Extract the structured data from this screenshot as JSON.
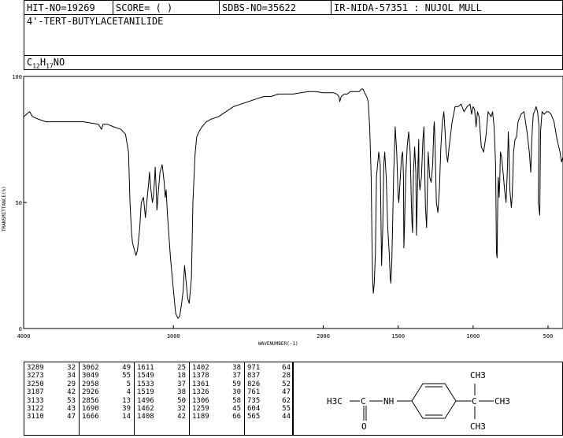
{
  "header": {
    "hit_no": "HIT-NO=19269",
    "score": "SCORE=  (   )",
    "sdbs_no": "SDBS-NO=35622",
    "ir_info": "IR-NIDA-57351 : NUJOL MULL"
  },
  "compound": {
    "name": "4'-TERT-BUTYLACETANILIDE",
    "formula_parts": [
      "C",
      "12",
      "H",
      "17",
      "NO"
    ]
  },
  "chart_data": {
    "type": "line",
    "xlabel": "WAVENUMBER(-1)",
    "ylabel": "TRANSMITTANCE(%)",
    "xlim": [
      4000,
      400
    ],
    "ylim": [
      0,
      100
    ],
    "x_ticks": [
      4000,
      3000,
      2000,
      1500,
      1000,
      500
    ],
    "x_tick_labels": [
      "4000",
      "3000",
      "2000",
      "1500",
      "1000",
      "500"
    ],
    "y_ticks": [
      0,
      50,
      100
    ],
    "y_tick_labels": [
      "0",
      "50",
      "100"
    ],
    "grid": false,
    "series": [
      {
        "x": [
          4000,
          3980,
          3960,
          3940,
          3900,
          3850,
          3800,
          3700,
          3600,
          3500,
          3480,
          3470,
          3440,
          3400,
          3350,
          3320,
          3300,
          3290,
          3280,
          3273,
          3260,
          3250,
          3240,
          3225,
          3215,
          3200,
          3187,
          3175,
          3165,
          3160,
          3150,
          3140,
          3133,
          3125,
          3122,
          3115,
          3110,
          3100,
          3090,
          3075,
          3062,
          3055,
          3049,
          3040,
          3020,
          3000,
          2985,
          2970,
          2958,
          2945,
          2935,
          2926,
          2915,
          2905,
          2895,
          2880,
          2870,
          2856,
          2845,
          2830,
          2810,
          2780,
          2750,
          2700,
          2650,
          2600,
          2550,
          2500,
          2450,
          2400,
          2350,
          2300,
          2250,
          2200,
          2150,
          2100,
          2050,
          2000,
          1970,
          1950,
          1930,
          1910,
          1895,
          1890,
          1880,
          1860,
          1840,
          1820,
          1800,
          1780,
          1760,
          1745,
          1735,
          1720,
          1710,
          1700,
          1690,
          1680,
          1675,
          1671,
          1666,
          1660,
          1652,
          1645,
          1630,
          1620,
          1611,
          1603,
          1596,
          1590,
          1580,
          1570,
          1560,
          1553,
          1549,
          1542,
          1534,
          1530,
          1527,
          1524,
          1520,
          1510,
          1500,
          1496,
          1488,
          1478,
          1470,
          1465,
          1462,
          1458,
          1450,
          1440,
          1430,
          1420,
          1412,
          1408,
          1404,
          1402,
          1398,
          1390,
          1382,
          1378,
          1374,
          1368,
          1363,
          1361,
          1355,
          1345,
          1335,
          1328,
          1325,
          1318,
          1310,
          1306,
          1300,
          1290,
          1280,
          1270,
          1262,
          1259,
          1255,
          1245,
          1235,
          1225,
          1215,
          1205,
          1195,
          1189,
          1180,
          1170,
          1160,
          1140,
          1120,
          1100,
          1080,
          1060,
          1040,
          1020,
          1010,
          1000,
          990,
          980,
          971,
          960,
          945,
          930,
          915,
          900,
          880,
          870,
          860,
          850,
          844,
          840,
          837,
          833,
          830,
          826,
          822,
          818,
          810,
          800,
          790,
          780,
          770,
          765,
          761,
          755,
          745,
          740,
          735,
          730,
          720,
          710,
          700,
          680,
          660,
          640,
          625,
          615,
          610,
          604,
          598,
          590,
          580,
          570,
          560,
          565,
          555,
          550,
          540,
          525,
          510,
          495,
          480,
          460,
          440,
          420,
          410,
          405,
          400
        ],
        "y": [
          84,
          85,
          86,
          84,
          83,
          82,
          82,
          82,
          82,
          81,
          79,
          81,
          81,
          80,
          79,
          77,
          70,
          50,
          38,
          34,
          31,
          29,
          31,
          40,
          50,
          52,
          44,
          52,
          58,
          62,
          55,
          50,
          53,
          60,
          64,
          55,
          47,
          55,
          62,
          65,
          58,
          52,
          55,
          45,
          28,
          15,
          6,
          4,
          5,
          10,
          15,
          25,
          18,
          12,
          10,
          20,
          50,
          69,
          76,
          78,
          80,
          82,
          83,
          84,
          86,
          88,
          89,
          90,
          91,
          92,
          92,
          93,
          93,
          93,
          93.5,
          94,
          94,
          93.5,
          93.5,
          93.5,
          93.5,
          93,
          92,
          90,
          92,
          93,
          93,
          94,
          94,
          94,
          94,
          95,
          95,
          93,
          92,
          90,
          80,
          60,
          35,
          20,
          14,
          18,
          30,
          60,
          70,
          65,
          25,
          40,
          65,
          70,
          60,
          40,
          30,
          20,
          18,
          28,
          50,
          62,
          67,
          72,
          80,
          70,
          52,
          50,
          58,
          68,
          70,
          60,
          32,
          40,
          60,
          72,
          78,
          70,
          50,
          42,
          38,
          48,
          62,
          72,
          62,
          37,
          48,
          65,
          75,
          60,
          55,
          60,
          75,
          80,
          70,
          48,
          40,
          52,
          70,
          60,
          58,
          65,
          80,
          82,
          75,
          50,
          46,
          55,
          72,
          82,
          86,
          80,
          70,
          66,
          72,
          82,
          88,
          88,
          89,
          86,
          88,
          89,
          85,
          88,
          87,
          80,
          86,
          84,
          72,
          70,
          76,
          86,
          84,
          86,
          80,
          65,
          30,
          28,
          42,
          60,
          58,
          52,
          58,
          70,
          68,
          62,
          55,
          50,
          65,
          78,
          72,
          55,
          48,
          52,
          60,
          70,
          75,
          76,
          82,
          85,
          86,
          78,
          70,
          62,
          72,
          80,
          85,
          86,
          88,
          86,
          80,
          50,
          45,
          78,
          86,
          85,
          86,
          86,
          85,
          82,
          75,
          70,
          66,
          67,
          68
        ]
      }
    ]
  },
  "peaks": [
    [
      [
        "3289",
        "32"
      ],
      [
        "3273",
        "34"
      ],
      [
        "3250",
        "29"
      ],
      [
        "3187",
        "42"
      ],
      [
        "3133",
        "53"
      ],
      [
        "3122",
        "43"
      ],
      [
        "3110",
        "47"
      ]
    ],
    [
      [
        "3062",
        "49"
      ],
      [
        "3049",
        "55"
      ],
      [
        "2958",
        "5"
      ],
      [
        "2926",
        "4"
      ],
      [
        "2856",
        "13"
      ],
      [
        "1690",
        "39"
      ],
      [
        "1666",
        "14"
      ]
    ],
    [
      [
        "1611",
        "25"
      ],
      [
        "1549",
        "18"
      ],
      [
        "1533",
        "37"
      ],
      [
        "1519",
        "38"
      ],
      [
        "1496",
        "50"
      ],
      [
        "1462",
        "32"
      ],
      [
        "1408",
        "42"
      ]
    ],
    [
      [
        "1402",
        "38"
      ],
      [
        "1378",
        "37"
      ],
      [
        "1361",
        "59"
      ],
      [
        "1326",
        "30"
      ],
      [
        "1306",
        "58"
      ],
      [
        "1259",
        "45"
      ],
      [
        "1189",
        "66"
      ]
    ],
    [
      [
        "971",
        "64"
      ],
      [
        "837",
        "28"
      ],
      [
        "826",
        "52"
      ],
      [
        "761",
        "47"
      ],
      [
        "735",
        "62"
      ],
      [
        "604",
        "55"
      ],
      [
        "565",
        "44"
      ]
    ]
  ],
  "structure": {
    "left_group": "H3C",
    "carbonyl_o": "O",
    "nh": "NH",
    "ch3_top": "CH3",
    "ch3_right": "CH3",
    "ch3_bottom": "CH3"
  }
}
